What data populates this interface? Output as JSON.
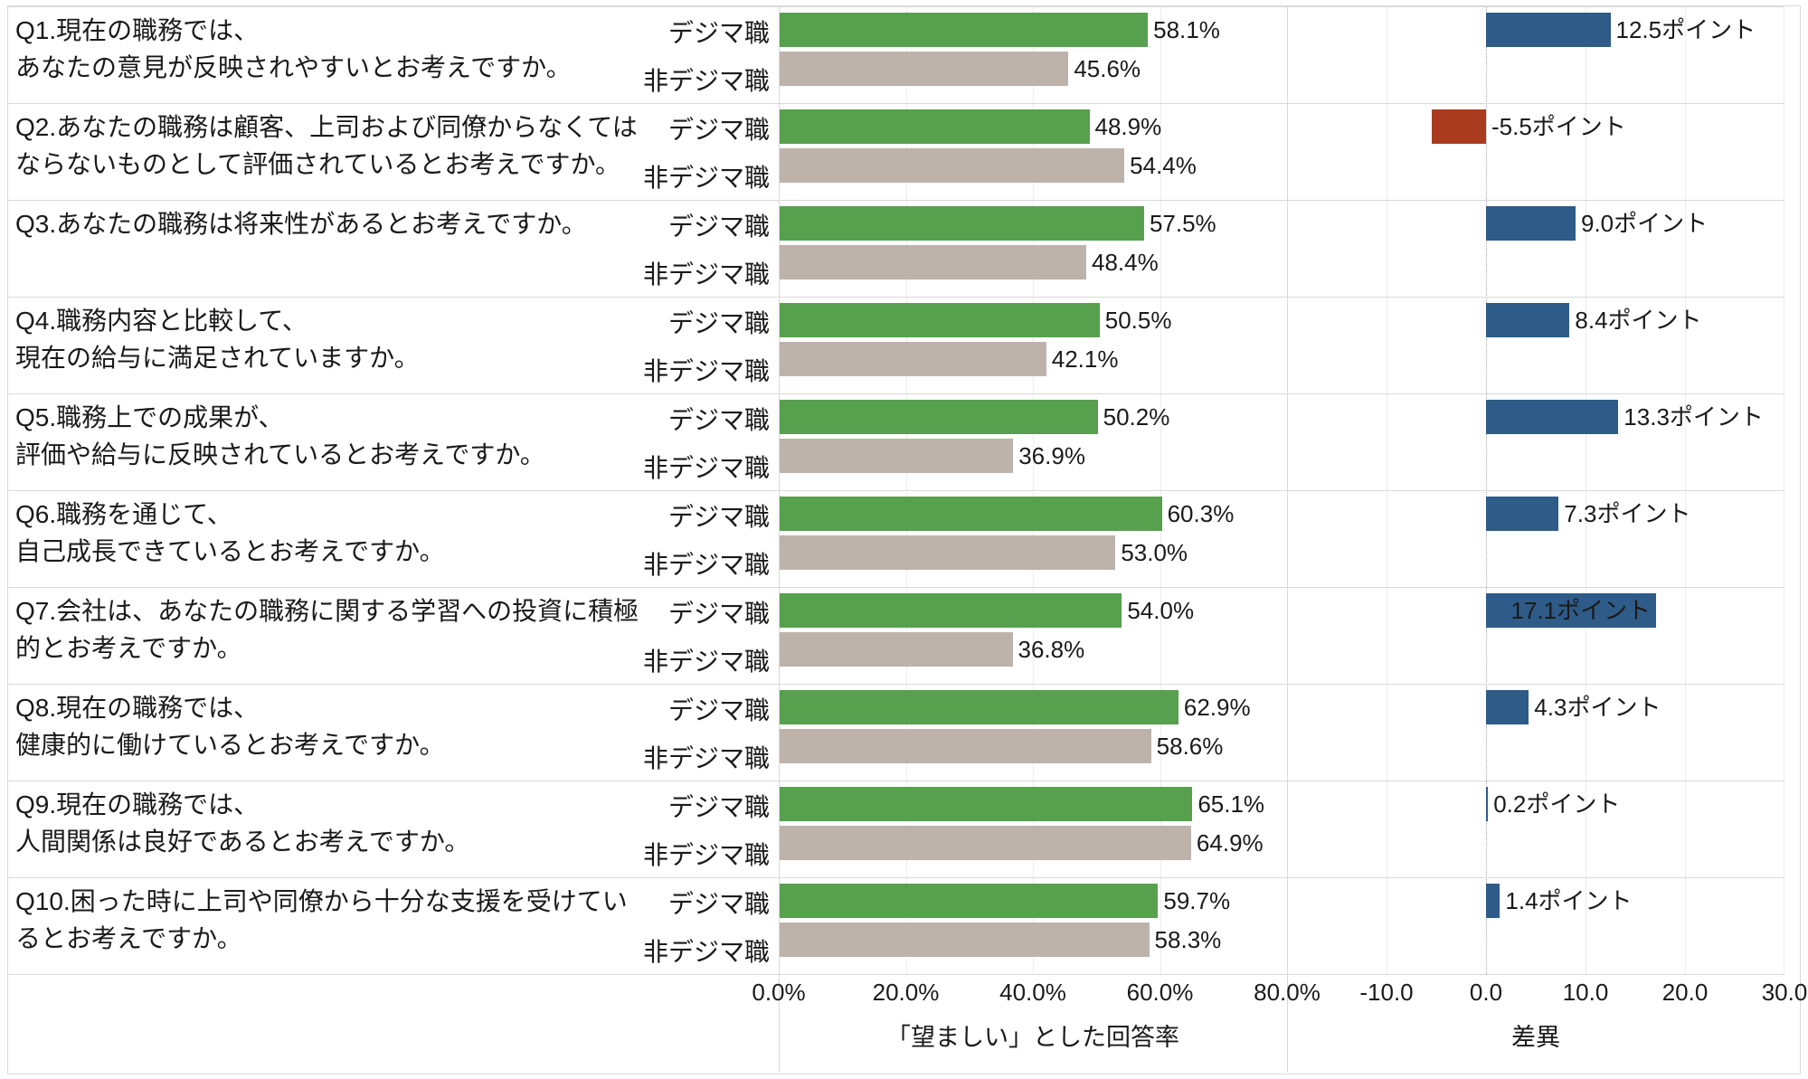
{
  "chart_data": {
    "type": "bar",
    "orientation": "horizontal",
    "title": "",
    "legend_position": "per-row-category-labels",
    "grid": "vertical-light",
    "categories": [
      "Q1.現在の職務では、\nあなたの意見が反映されやすいとお考えですか。",
      "Q2.あなたの職務は顧客、上司および同僚からなくてはならないものとして評価されているとお考えですか。",
      "Q3.あなたの職務は将来性があるとお考えですか。",
      "Q4.職務内容と比較して、\n現在の給与に満足されていますか。",
      "Q5.職務上での成果が、\n評価や給与に反映されているとお考えですか。",
      "Q6.職務を通じて、\n自己成長できているとお考えですか。",
      "Q7.会社は、あなたの職務に関する学習への投資に積極的とお考えですか。",
      "Q8.現在の職務では、\n健康的に働けているとお考えですか。",
      "Q9.現在の職務では、\n人間関係は良好であるとお考えですか。",
      "Q10.困った時に上司や同僚から十分な支援を受けているとお考えですか。"
    ],
    "series": [
      {
        "name": "デジマ職",
        "color": "#57a04e",
        "suffix": "%",
        "values": [
          58.1,
          48.9,
          57.5,
          50.5,
          50.2,
          60.3,
          54.0,
          62.9,
          65.1,
          59.7
        ]
      },
      {
        "name": "非デジマ職",
        "color": "#bdb3ab",
        "suffix": "%",
        "values": [
          45.6,
          54.4,
          48.4,
          42.1,
          36.9,
          53.0,
          36.8,
          58.6,
          64.9,
          58.3
        ]
      }
    ],
    "diff": {
      "name": "差異",
      "suffix": "ポイント",
      "color_positive": "#2e5b88",
      "color_negative": "#a93c1e",
      "values": [
        12.5,
        -5.5,
        9.0,
        8.4,
        13.3,
        7.3,
        17.1,
        4.3,
        0.2,
        1.4
      ]
    },
    "percent_axis": {
      "title": "「望ましい」とした回答率",
      "min": 0,
      "max": 80,
      "ticks": [
        {
          "label": "0.0%",
          "value": 0
        },
        {
          "label": "20.0%",
          "value": 20
        },
        {
          "label": "40.0%",
          "value": 40
        },
        {
          "label": "60.0%",
          "value": 60
        },
        {
          "label": "80.0%",
          "value": 80
        }
      ]
    },
    "diff_axis": {
      "title": "差異",
      "min": -20,
      "max": 30,
      "ticks": [
        {
          "label": "-10.0",
          "value": -10
        },
        {
          "label": "0.0",
          "value": 0
        },
        {
          "label": "10.0",
          "value": 10
        },
        {
          "label": "20.0",
          "value": 20
        },
        {
          "label": "30.0",
          "value": 30
        }
      ]
    },
    "colors": {
      "gridline": "#ececec",
      "separator": "#d9d9d9",
      "zero_line": "#a6a6a6",
      "text": "#1a1a1a"
    }
  }
}
